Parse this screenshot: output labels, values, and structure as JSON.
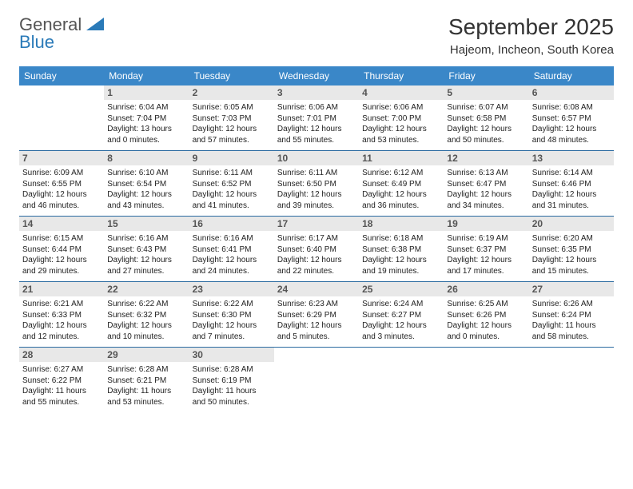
{
  "logo": {
    "line1": "General",
    "line2": "Blue"
  },
  "title": {
    "month": "September 2025",
    "location": "Hajeom, Incheon, South Korea"
  },
  "colors": {
    "header_bg": "#3a87c8",
    "daynum_bg": "#e8e8e8",
    "rule": "#2a6aa0",
    "logo_blue": "#2a7ab8"
  },
  "weekdays": [
    "Sunday",
    "Monday",
    "Tuesday",
    "Wednesday",
    "Thursday",
    "Friday",
    "Saturday"
  ],
  "days": [
    {
      "n": "",
      "sr": "",
      "ss": "",
      "dl": ""
    },
    {
      "n": "1",
      "sr": "Sunrise: 6:04 AM",
      "ss": "Sunset: 7:04 PM",
      "dl": "Daylight: 13 hours and 0 minutes."
    },
    {
      "n": "2",
      "sr": "Sunrise: 6:05 AM",
      "ss": "Sunset: 7:03 PM",
      "dl": "Daylight: 12 hours and 57 minutes."
    },
    {
      "n": "3",
      "sr": "Sunrise: 6:06 AM",
      "ss": "Sunset: 7:01 PM",
      "dl": "Daylight: 12 hours and 55 minutes."
    },
    {
      "n": "4",
      "sr": "Sunrise: 6:06 AM",
      "ss": "Sunset: 7:00 PM",
      "dl": "Daylight: 12 hours and 53 minutes."
    },
    {
      "n": "5",
      "sr": "Sunrise: 6:07 AM",
      "ss": "Sunset: 6:58 PM",
      "dl": "Daylight: 12 hours and 50 minutes."
    },
    {
      "n": "6",
      "sr": "Sunrise: 6:08 AM",
      "ss": "Sunset: 6:57 PM",
      "dl": "Daylight: 12 hours and 48 minutes."
    },
    {
      "n": "7",
      "sr": "Sunrise: 6:09 AM",
      "ss": "Sunset: 6:55 PM",
      "dl": "Daylight: 12 hours and 46 minutes."
    },
    {
      "n": "8",
      "sr": "Sunrise: 6:10 AM",
      "ss": "Sunset: 6:54 PM",
      "dl": "Daylight: 12 hours and 43 minutes."
    },
    {
      "n": "9",
      "sr": "Sunrise: 6:11 AM",
      "ss": "Sunset: 6:52 PM",
      "dl": "Daylight: 12 hours and 41 minutes."
    },
    {
      "n": "10",
      "sr": "Sunrise: 6:11 AM",
      "ss": "Sunset: 6:50 PM",
      "dl": "Daylight: 12 hours and 39 minutes."
    },
    {
      "n": "11",
      "sr": "Sunrise: 6:12 AM",
      "ss": "Sunset: 6:49 PM",
      "dl": "Daylight: 12 hours and 36 minutes."
    },
    {
      "n": "12",
      "sr": "Sunrise: 6:13 AM",
      "ss": "Sunset: 6:47 PM",
      "dl": "Daylight: 12 hours and 34 minutes."
    },
    {
      "n": "13",
      "sr": "Sunrise: 6:14 AM",
      "ss": "Sunset: 6:46 PM",
      "dl": "Daylight: 12 hours and 31 minutes."
    },
    {
      "n": "14",
      "sr": "Sunrise: 6:15 AM",
      "ss": "Sunset: 6:44 PM",
      "dl": "Daylight: 12 hours and 29 minutes."
    },
    {
      "n": "15",
      "sr": "Sunrise: 6:16 AM",
      "ss": "Sunset: 6:43 PM",
      "dl": "Daylight: 12 hours and 27 minutes."
    },
    {
      "n": "16",
      "sr": "Sunrise: 6:16 AM",
      "ss": "Sunset: 6:41 PM",
      "dl": "Daylight: 12 hours and 24 minutes."
    },
    {
      "n": "17",
      "sr": "Sunrise: 6:17 AM",
      "ss": "Sunset: 6:40 PM",
      "dl": "Daylight: 12 hours and 22 minutes."
    },
    {
      "n": "18",
      "sr": "Sunrise: 6:18 AM",
      "ss": "Sunset: 6:38 PM",
      "dl": "Daylight: 12 hours and 19 minutes."
    },
    {
      "n": "19",
      "sr": "Sunrise: 6:19 AM",
      "ss": "Sunset: 6:37 PM",
      "dl": "Daylight: 12 hours and 17 minutes."
    },
    {
      "n": "20",
      "sr": "Sunrise: 6:20 AM",
      "ss": "Sunset: 6:35 PM",
      "dl": "Daylight: 12 hours and 15 minutes."
    },
    {
      "n": "21",
      "sr": "Sunrise: 6:21 AM",
      "ss": "Sunset: 6:33 PM",
      "dl": "Daylight: 12 hours and 12 minutes."
    },
    {
      "n": "22",
      "sr": "Sunrise: 6:22 AM",
      "ss": "Sunset: 6:32 PM",
      "dl": "Daylight: 12 hours and 10 minutes."
    },
    {
      "n": "23",
      "sr": "Sunrise: 6:22 AM",
      "ss": "Sunset: 6:30 PM",
      "dl": "Daylight: 12 hours and 7 minutes."
    },
    {
      "n": "24",
      "sr": "Sunrise: 6:23 AM",
      "ss": "Sunset: 6:29 PM",
      "dl": "Daylight: 12 hours and 5 minutes."
    },
    {
      "n": "25",
      "sr": "Sunrise: 6:24 AM",
      "ss": "Sunset: 6:27 PM",
      "dl": "Daylight: 12 hours and 3 minutes."
    },
    {
      "n": "26",
      "sr": "Sunrise: 6:25 AM",
      "ss": "Sunset: 6:26 PM",
      "dl": "Daylight: 12 hours and 0 minutes."
    },
    {
      "n": "27",
      "sr": "Sunrise: 6:26 AM",
      "ss": "Sunset: 6:24 PM",
      "dl": "Daylight: 11 hours and 58 minutes."
    },
    {
      "n": "28",
      "sr": "Sunrise: 6:27 AM",
      "ss": "Sunset: 6:22 PM",
      "dl": "Daylight: 11 hours and 55 minutes."
    },
    {
      "n": "29",
      "sr": "Sunrise: 6:28 AM",
      "ss": "Sunset: 6:21 PM",
      "dl": "Daylight: 11 hours and 53 minutes."
    },
    {
      "n": "30",
      "sr": "Sunrise: 6:28 AM",
      "ss": "Sunset: 6:19 PM",
      "dl": "Daylight: 11 hours and 50 minutes."
    },
    {
      "n": "",
      "sr": "",
      "ss": "",
      "dl": ""
    },
    {
      "n": "",
      "sr": "",
      "ss": "",
      "dl": ""
    },
    {
      "n": "",
      "sr": "",
      "ss": "",
      "dl": ""
    },
    {
      "n": "",
      "sr": "",
      "ss": "",
      "dl": ""
    }
  ]
}
